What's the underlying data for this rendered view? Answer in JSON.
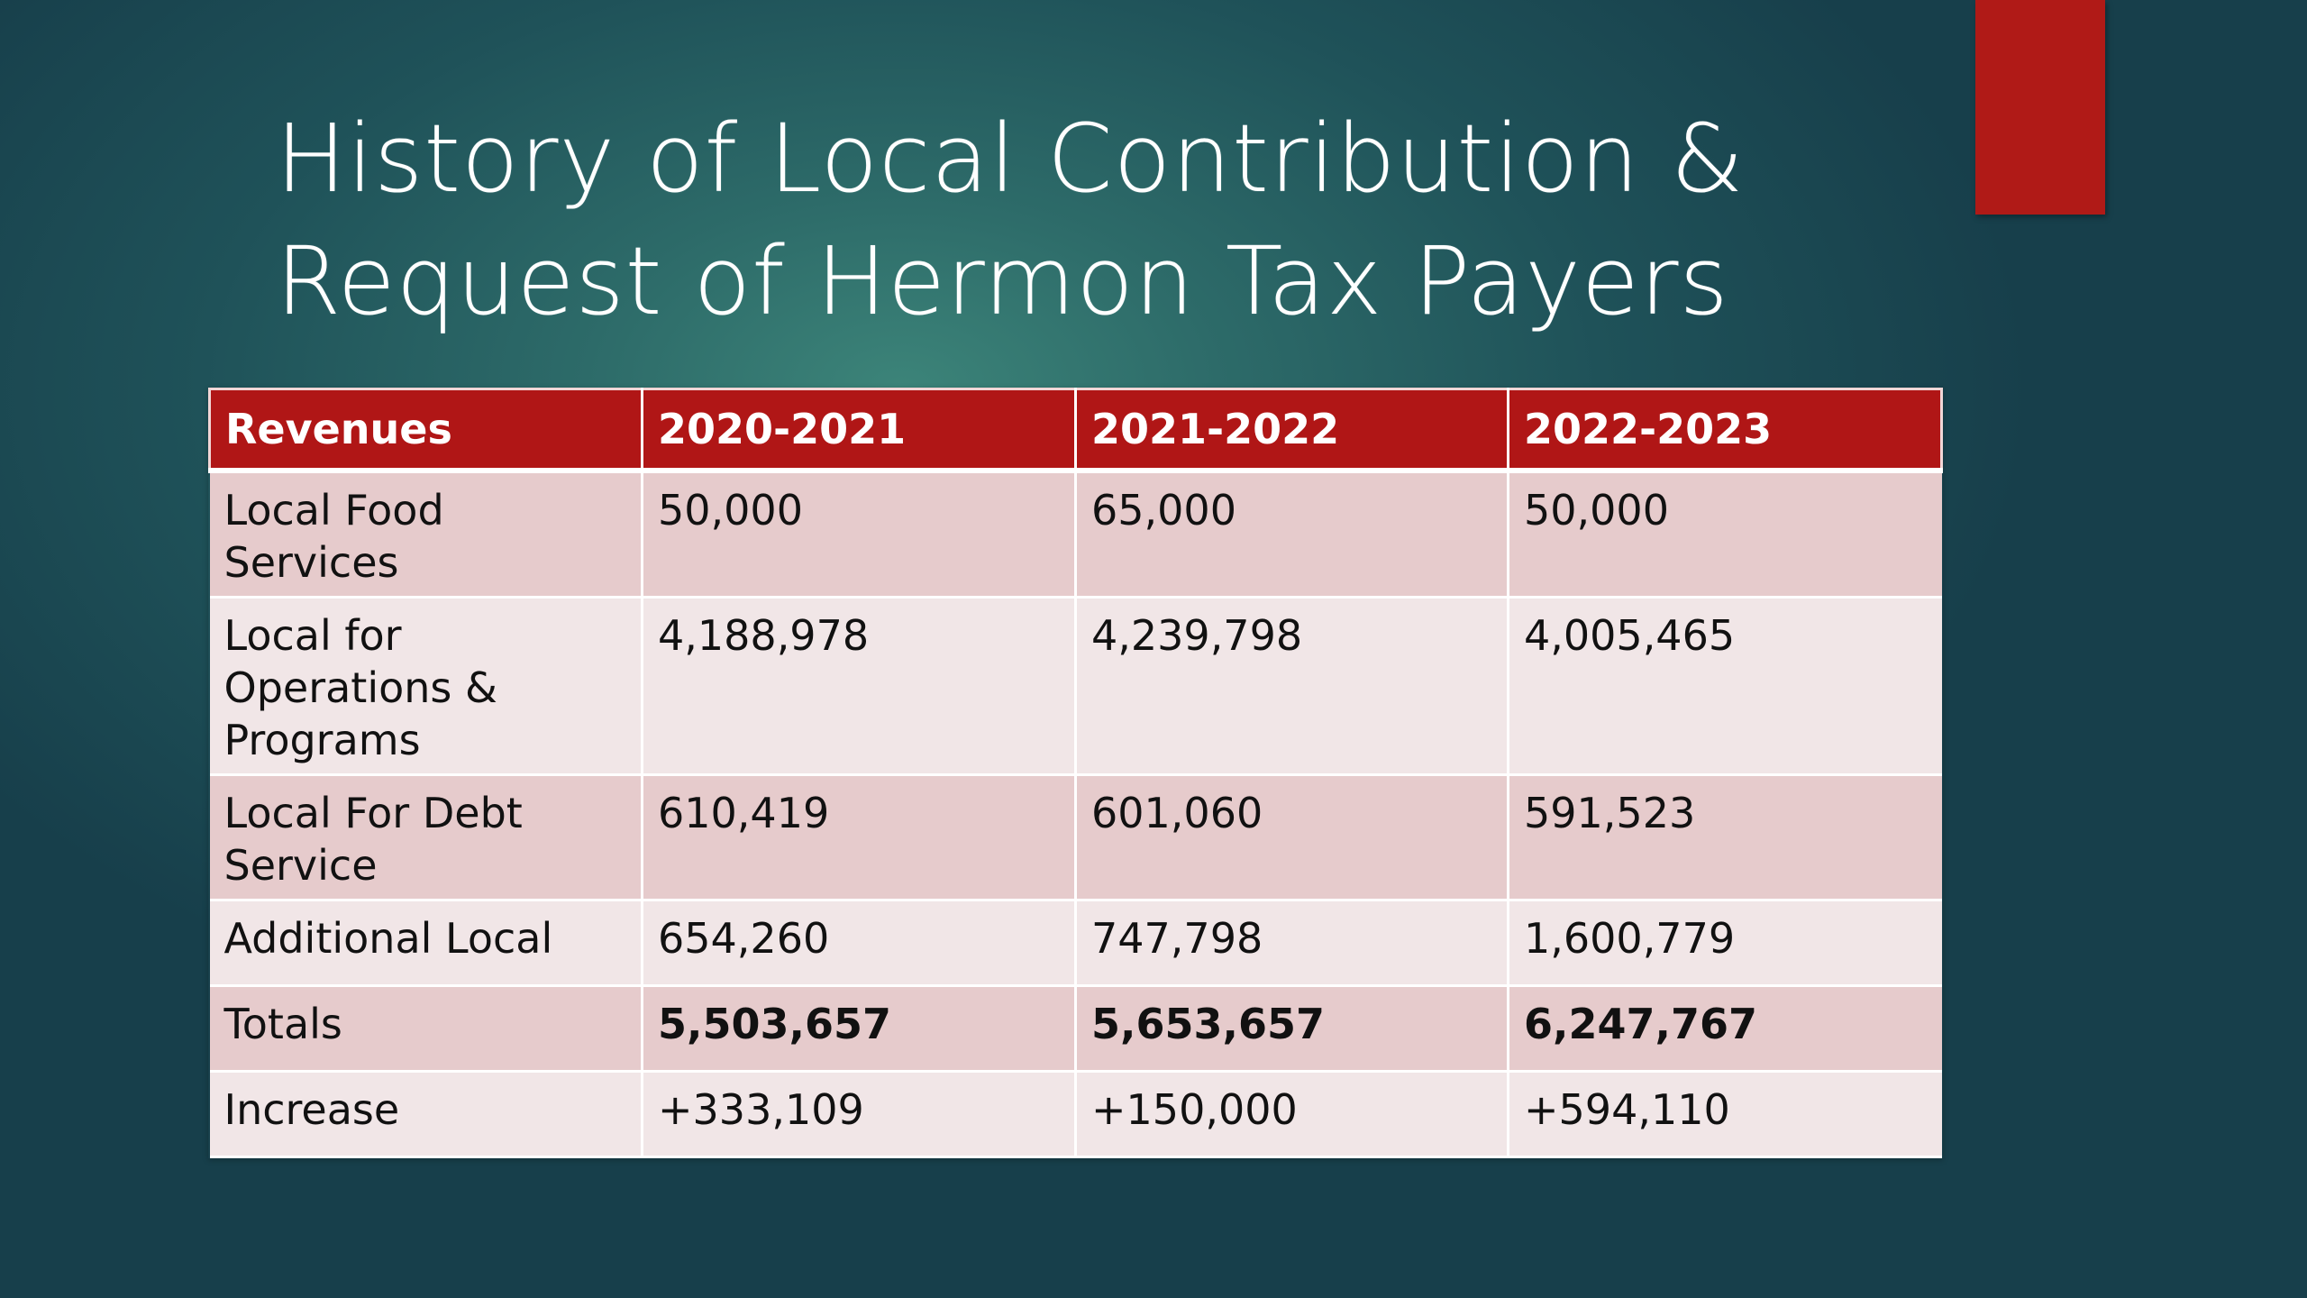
{
  "slide": {
    "title_line1": "History of Local Contribution &",
    "title_line2": "Request of Hermon Tax Payers",
    "accent_color": "#b01a17"
  },
  "table": {
    "headers": [
      "Revenues",
      "2020-2021",
      "2021-2022",
      "2022-2023"
    ],
    "rows": [
      {
        "label": "Local Food Services",
        "values": [
          "50,000",
          "65,000",
          "50,000"
        ]
      },
      {
        "label": "Local for Operations & Programs",
        "values": [
          "4,188,978",
          "4,239,798",
          "4,005,465"
        ]
      },
      {
        "label": "Local For Debt Service",
        "values": [
          "610,419",
          "601,060",
          "591,523"
        ]
      },
      {
        "label": "Additional Local",
        "values": [
          "654,260",
          "747,798",
          "1,600,779"
        ]
      },
      {
        "label": "Totals",
        "values": [
          "5,503,657",
          "5,653,657",
          "6,247,767"
        ]
      },
      {
        "label": "Increase",
        "values": [
          "+333,109",
          "+150,000",
          "+594,110"
        ]
      }
    ],
    "header_color": "#b01616",
    "row_color_odd": "#e6cbcc",
    "row_color_even": "#f1e6e7"
  }
}
